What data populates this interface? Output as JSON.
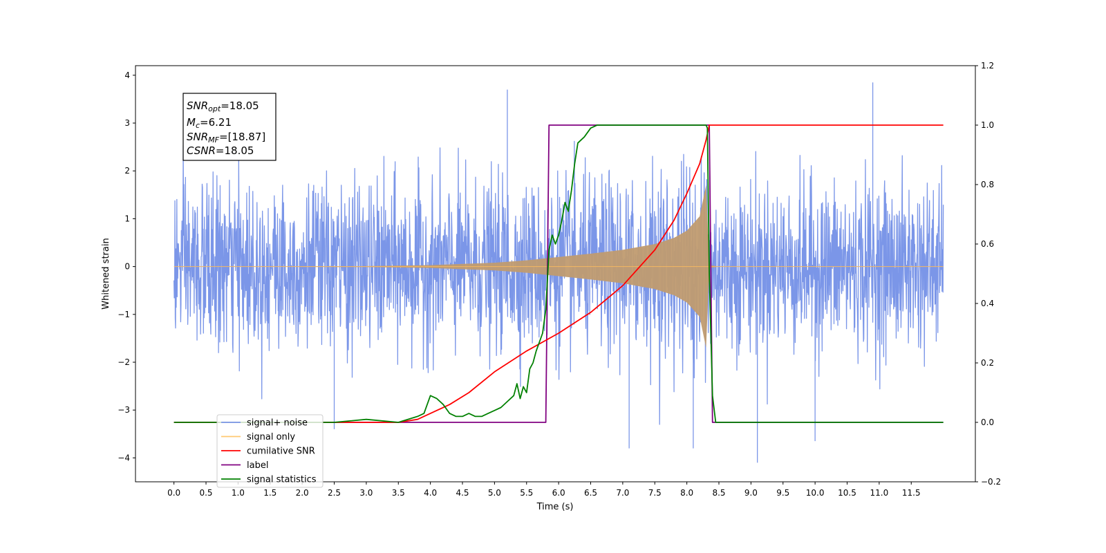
{
  "chart_data": {
    "type": "line",
    "xlabel": "Time (s)",
    "ylabel_left": "Whitened strain",
    "ylabel_right": "",
    "xlim": [
      -0.6,
      12.5
    ],
    "ylim_left": [
      -4.5,
      4.2
    ],
    "ylim_right": [
      -0.2,
      1.2
    ],
    "x_ticks": [
      "0.0",
      "0.5",
      "1.0",
      "1.5",
      "2.0",
      "2.5",
      "3.0",
      "3.5",
      "4.0",
      "4.5",
      "5.0",
      "5.5",
      "6.0",
      "6.5",
      "7.0",
      "7.5",
      "8.0",
      "8.5",
      "9.0",
      "9.5",
      "10.0",
      "10.5",
      "11.0",
      "11.5"
    ],
    "y_ticks_left": [
      "4",
      "3",
      "2",
      "1",
      "0",
      "−1",
      "−2",
      "−3",
      "−4"
    ],
    "y_ticks_right": [
      "1.2",
      "1.0",
      "0.8",
      "0.6",
      "0.4",
      "0.2",
      "0.0",
      "−0.2"
    ],
    "grid": false,
    "legend_position": "lower-left",
    "stats_box": [
      "SNRopt=18.05",
      "Mc=6.21",
      "SNRMF=[18.87]",
      "CSNR=18.05"
    ],
    "series": [
      {
        "name": "signal+ noise",
        "axis": "left",
        "color": "#7b96e8",
        "description_range": [
          0.0,
          12.0
        ],
        "typical_amplitude": 1.2,
        "peak_values": [
          [
            5.2,
            3.7
          ],
          [
            10.9,
            3.85
          ],
          [
            9.1,
            -4.1
          ],
          [
            7.1,
            -3.8
          ],
          [
            8.1,
            -3.8
          ],
          [
            10.0,
            -3.65
          ],
          [
            2.5,
            -3.4
          ]
        ]
      },
      {
        "name": "signal only",
        "axis": "left",
        "color": "#c49a6c",
        "envelope": [
          [
            0.0,
            0.0
          ],
          [
            3.0,
            0.01
          ],
          [
            4.0,
            0.03
          ],
          [
            5.0,
            0.08
          ],
          [
            5.5,
            0.13
          ],
          [
            6.0,
            0.2
          ],
          [
            6.5,
            0.27
          ],
          [
            7.0,
            0.35
          ],
          [
            7.5,
            0.47
          ],
          [
            7.8,
            0.6
          ],
          [
            8.0,
            0.75
          ],
          [
            8.2,
            1.05
          ],
          [
            8.3,
            1.7
          ],
          [
            8.35,
            0.03
          ],
          [
            8.5,
            0.0
          ],
          [
            12.0,
            0.0
          ]
        ]
      },
      {
        "name": "cumilative SNR",
        "axis": "right",
        "color": "#ff0000",
        "x": [
          0.0,
          3.0,
          3.5,
          3.8,
          4.0,
          4.3,
          4.6,
          5.0,
          5.5,
          6.0,
          6.5,
          7.0,
          7.5,
          7.8,
          8.0,
          8.2,
          8.3,
          8.35,
          8.4,
          12.0
        ],
        "values": [
          0.0,
          0.0,
          0.0,
          0.01,
          0.03,
          0.06,
          0.1,
          0.17,
          0.24,
          0.3,
          0.37,
          0.46,
          0.58,
          0.68,
          0.77,
          0.87,
          0.95,
          1.0,
          1.0,
          1.0
        ]
      },
      {
        "name": "label",
        "axis": "right",
        "color": "#800080",
        "x": [
          0.0,
          5.8,
          5.85,
          8.35,
          8.4,
          12.0
        ],
        "values": [
          0.0,
          0.0,
          1.0,
          1.0,
          0.0,
          0.0
        ]
      },
      {
        "name": "signal statistics",
        "axis": "right",
        "color": "#008000",
        "x": [
          0.0,
          2.5,
          3.0,
          3.5,
          3.8,
          3.9,
          4.0,
          4.1,
          4.2,
          4.3,
          4.4,
          4.5,
          4.6,
          4.7,
          4.8,
          4.9,
          5.0,
          5.1,
          5.2,
          5.3,
          5.35,
          5.4,
          5.45,
          5.5,
          5.55,
          5.6,
          5.65,
          5.7,
          5.75,
          5.8,
          5.85,
          5.9,
          5.95,
          6.0,
          6.05,
          6.1,
          6.15,
          6.2,
          6.25,
          6.3,
          6.4,
          6.5,
          6.6,
          6.7,
          6.8,
          7.0,
          8.0,
          8.3,
          8.32,
          8.35,
          8.4,
          8.45,
          12.0
        ],
        "values": [
          0.0,
          0.0,
          0.01,
          0.0,
          0.02,
          0.03,
          0.09,
          0.08,
          0.06,
          0.03,
          0.02,
          0.02,
          0.03,
          0.02,
          0.02,
          0.03,
          0.04,
          0.05,
          0.07,
          0.09,
          0.13,
          0.08,
          0.12,
          0.1,
          0.18,
          0.2,
          0.24,
          0.27,
          0.3,
          0.38,
          0.58,
          0.63,
          0.6,
          0.63,
          0.68,
          0.74,
          0.71,
          0.78,
          0.87,
          0.94,
          0.96,
          0.99,
          1.0,
          1.0,
          1.0,
          1.0,
          1.0,
          1.0,
          0.99,
          0.5,
          0.09,
          0.0,
          0.0
        ]
      }
    ]
  }
}
